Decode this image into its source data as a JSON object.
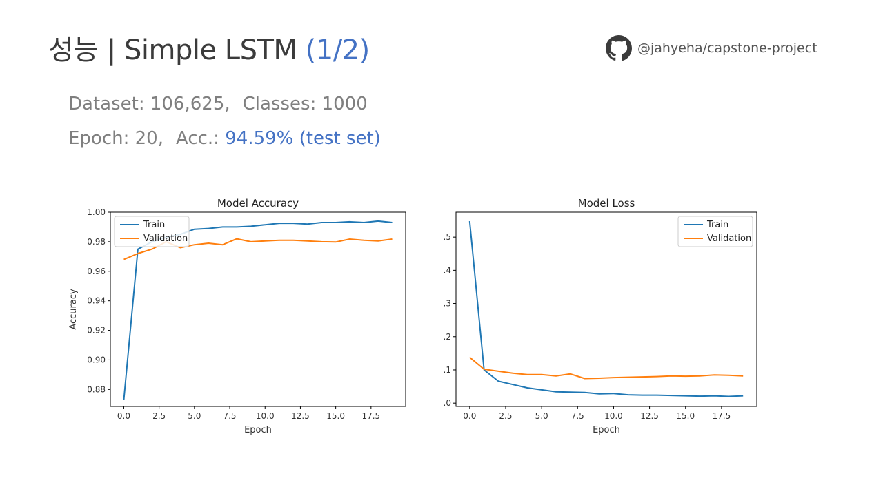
{
  "slide": {
    "title_main": "성능 | Simple LSTM ",
    "title_accent": "(1/2)",
    "repo_label": "@jahyeha/capstone-project",
    "repo_icon": "github-icon",
    "dataset_text": "Dataset: 106,625,",
    "classes_text": "Classes: 1000",
    "epoch_text": "Epoch: 20,",
    "acc_label": "Acc.: ",
    "acc_value": "94.59% (test set)",
    "accent_color": "#4472c4"
  },
  "chart_data": [
    {
      "type": "line",
      "title": "Model Accuracy",
      "xlabel": "Epoch",
      "ylabel": "Accuracy",
      "xlim": [
        -0.95,
        19.95
      ],
      "ylim": [
        0.8685,
        1.0
      ],
      "xticks": [
        0.0,
        2.5,
        5.0,
        7.5,
        10.0,
        12.5,
        15.0,
        17.5
      ],
      "xtick_labels": [
        "0.0",
        "2.5",
        "5.0",
        "7.5",
        "10.0",
        "12.5",
        "15.0",
        "17.5"
      ],
      "yticks": [
        0.88,
        0.9,
        0.92,
        0.94,
        0.96,
        0.98,
        1.0
      ],
      "ytick_labels": [
        "0.88",
        "0.90",
        "0.92",
        "0.94",
        "0.96",
        "0.98",
        "1.00"
      ],
      "grid": false,
      "legend_position": "upper-left",
      "x": [
        0,
        1,
        2,
        3,
        4,
        5,
        6,
        7,
        8,
        9,
        10,
        11,
        12,
        13,
        14,
        15,
        16,
        17,
        18,
        19
      ],
      "series": [
        {
          "name": "Train",
          "color": "#1f77b4",
          "values": [
            0.873,
            0.975,
            0.98,
            0.983,
            0.985,
            0.9885,
            0.989,
            0.99,
            0.99,
            0.9905,
            0.9915,
            0.9925,
            0.9925,
            0.992,
            0.993,
            0.993,
            0.9935,
            0.993,
            0.994,
            0.993
          ]
        },
        {
          "name": "Validation",
          "color": "#ff7f0e",
          "values": [
            0.968,
            0.972,
            0.975,
            0.98,
            0.976,
            0.978,
            0.979,
            0.978,
            0.982,
            0.98,
            0.9805,
            0.981,
            0.981,
            0.9805,
            0.98,
            0.9798,
            0.9818,
            0.981,
            0.9805,
            0.9818
          ]
        }
      ]
    },
    {
      "type": "line",
      "title": "Model Loss",
      "xlabel": "Epoch",
      "ylabel": "",
      "xlim": [
        -0.95,
        19.95
      ],
      "ylim": [
        -0.01,
        0.575
      ],
      "xticks": [
        0.0,
        2.5,
        5.0,
        7.5,
        10.0,
        12.5,
        15.0,
        17.5
      ],
      "xtick_labels": [
        "0.0",
        "2.5",
        "5.0",
        "7.5",
        "10.0",
        "12.5",
        "15.0",
        "17.5"
      ],
      "yticks": [
        0.0,
        0.1,
        0.2,
        0.3,
        0.4,
        0.5
      ],
      "ytick_labels": [
        ".0",
        ".1",
        ".2",
        ".3",
        ".4",
        ".5"
      ],
      "grid": false,
      "legend_position": "upper-right",
      "x": [
        0,
        1,
        2,
        3,
        4,
        5,
        6,
        7,
        8,
        9,
        10,
        11,
        12,
        13,
        14,
        15,
        16,
        17,
        18,
        19
      ],
      "series": [
        {
          "name": "Train",
          "color": "#1f77b4",
          "values": [
            0.548,
            0.1,
            0.066,
            0.056,
            0.046,
            0.04,
            0.034,
            0.033,
            0.032,
            0.028,
            0.029,
            0.025,
            0.024,
            0.024,
            0.023,
            0.022,
            0.021,
            0.022,
            0.02,
            0.022
          ]
        },
        {
          "name": "Validation",
          "color": "#ff7f0e",
          "values": [
            0.138,
            0.102,
            0.096,
            0.09,
            0.086,
            0.086,
            0.082,
            0.088,
            0.074,
            0.075,
            0.077,
            0.078,
            0.079,
            0.08,
            0.082,
            0.081,
            0.082,
            0.085,
            0.084,
            0.082
          ]
        }
      ]
    }
  ]
}
